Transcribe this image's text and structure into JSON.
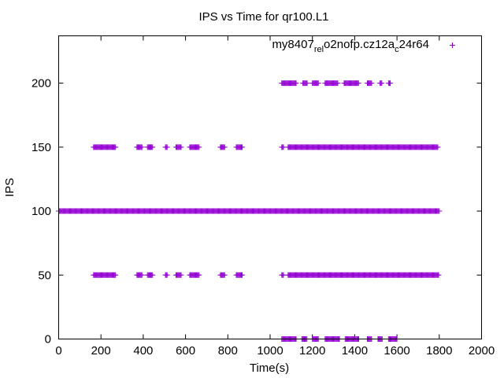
{
  "chart_data": {
    "type": "scatter",
    "title": "IPS vs Time for qr100.L1",
    "xlabel": "Time(s)",
    "ylabel": "IPS",
    "xlim": [
      0,
      2000
    ],
    "ylim": [
      0,
      237
    ],
    "xticks": [
      0,
      200,
      400,
      600,
      800,
      1000,
      1200,
      1400,
      1600,
      1800,
      2000
    ],
    "yticks": [
      0,
      50,
      100,
      150,
      200
    ],
    "grid": false,
    "legend_position": "top-right",
    "marker": "plus",
    "series": [
      {
        "name_parts": [
          "my8407",
          "rel",
          "o",
          "2nofp.cz12a",
          "c",
          "24r64"
        ],
        "color": "#9400d3",
        "level_ranges": [
          {
            "y": 100,
            "ranges": [
              [
                0,
                1800
              ]
            ]
          },
          {
            "y": 150,
            "ranges": [
              [
                165,
                270
              ],
              [
                370,
                395
              ],
              [
                420,
                445
              ],
              [
                505,
                515
              ],
              [
                555,
                580
              ],
              [
                620,
                665
              ],
              [
                765,
                785
              ],
              [
                840,
                870
              ],
              [
                1055,
                1065
              ],
              [
                1085,
                1795
              ]
            ]
          },
          {
            "y": 50,
            "ranges": [
              [
                165,
                270
              ],
              [
                370,
                395
              ],
              [
                420,
                445
              ],
              [
                505,
                515
              ],
              [
                555,
                580
              ],
              [
                620,
                665
              ],
              [
                765,
                785
              ],
              [
                840,
                870
              ],
              [
                1055,
                1065
              ],
              [
                1085,
                1800
              ]
            ]
          },
          {
            "y": 200,
            "ranges": [
              [
                1055,
                1125
              ],
              [
                1155,
                1175
              ],
              [
                1200,
                1230
              ],
              [
                1260,
                1320
              ],
              [
                1350,
                1420
              ],
              [
                1460,
                1480
              ],
              [
                1520,
                1530
              ],
              [
                1560,
                1570
              ]
            ]
          },
          {
            "y": 0,
            "ranges": [
              [
                1055,
                1125
              ],
              [
                1150,
                1175
              ],
              [
                1200,
                1230
              ],
              [
                1260,
                1330
              ],
              [
                1355,
                1420
              ],
              [
                1460,
                1480
              ],
              [
                1510,
                1530
              ],
              [
                1560,
                1600
              ]
            ]
          }
        ]
      }
    ]
  }
}
